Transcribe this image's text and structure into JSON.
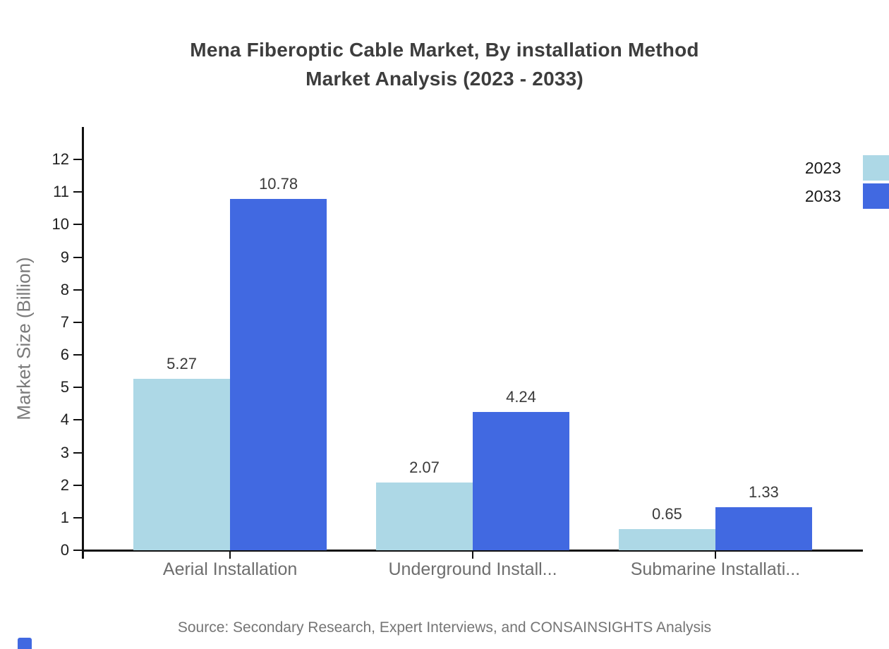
{
  "title": {
    "line1": "Mena Fiberoptic Cable Market, By installation Method",
    "line2": "Market Analysis (2023 - 2033)"
  },
  "source": "Source: Secondary Research, Expert Interviews, and CONSAINSIGHTS Analysis",
  "axes": {
    "y_label": "Market Size (Billion)"
  },
  "colors": {
    "series_2023": "#ADD8E6",
    "series_2033": "#4169E1",
    "axis": "#111111",
    "title_text": "#3d3d3d",
    "muted_text": "#6e6e6e"
  },
  "chart_data": {
    "type": "bar",
    "title": "Mena Fiberoptic Cable Market, By installation Method Market Analysis (2023 - 2033)",
    "categories": [
      "Aerial Installation",
      "Underground Install...",
      "Submarine Installati..."
    ],
    "series": [
      {
        "name": "2023",
        "color": "#ADD8E6",
        "values": [
          5.27,
          2.07,
          0.65
        ]
      },
      {
        "name": "2033",
        "color": "#4169E1",
        "values": [
          10.78,
          4.24,
          1.33
        ]
      }
    ],
    "value_labels": [
      "5.27",
      "10.78",
      "2.07",
      "4.24",
      "0.65",
      "1.33"
    ],
    "xlabel": "",
    "ylabel": "Market Size (Billion)",
    "ylim": [
      0,
      13
    ],
    "yticks": [
      0,
      1,
      2,
      3,
      4,
      5,
      6,
      7,
      8,
      9,
      10,
      11,
      12
    ],
    "grid": false,
    "legend_position": "top-right",
    "legend_entries": [
      "2023",
      "2033"
    ]
  }
}
